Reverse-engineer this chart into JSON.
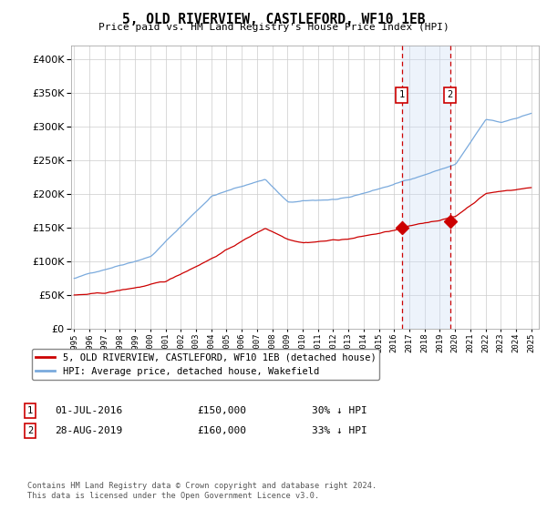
{
  "title": "5, OLD RIVERVIEW, CASTLEFORD, WF10 1EB",
  "subtitle": "Price paid vs. HM Land Registry's House Price Index (HPI)",
  "ylim": [
    0,
    420000
  ],
  "yticks": [
    0,
    50000,
    100000,
    150000,
    200000,
    250000,
    300000,
    350000,
    400000
  ],
  "xlim_start": 1995.0,
  "xlim_end": 2025.5,
  "legend_line1": "5, OLD RIVERVIEW, CASTLEFORD, WF10 1EB (detached house)",
  "legend_line2": "HPI: Average price, detached house, Wakefield",
  "marker1_date": 2016.5,
  "marker1_price": 150000,
  "marker2_date": 2019.67,
  "marker2_price": 160000,
  "footnote": "Contains HM Land Registry data © Crown copyright and database right 2024.\nThis data is licensed under the Open Government Licence v3.0.",
  "hpi_color": "#7aaadd",
  "price_color": "#cc0000",
  "marker_color": "#cc0000",
  "shaded_color": "#ccddf5",
  "dashed_color": "#cc0000",
  "background_color": "#ffffff",
  "grid_color": "#cccccc"
}
